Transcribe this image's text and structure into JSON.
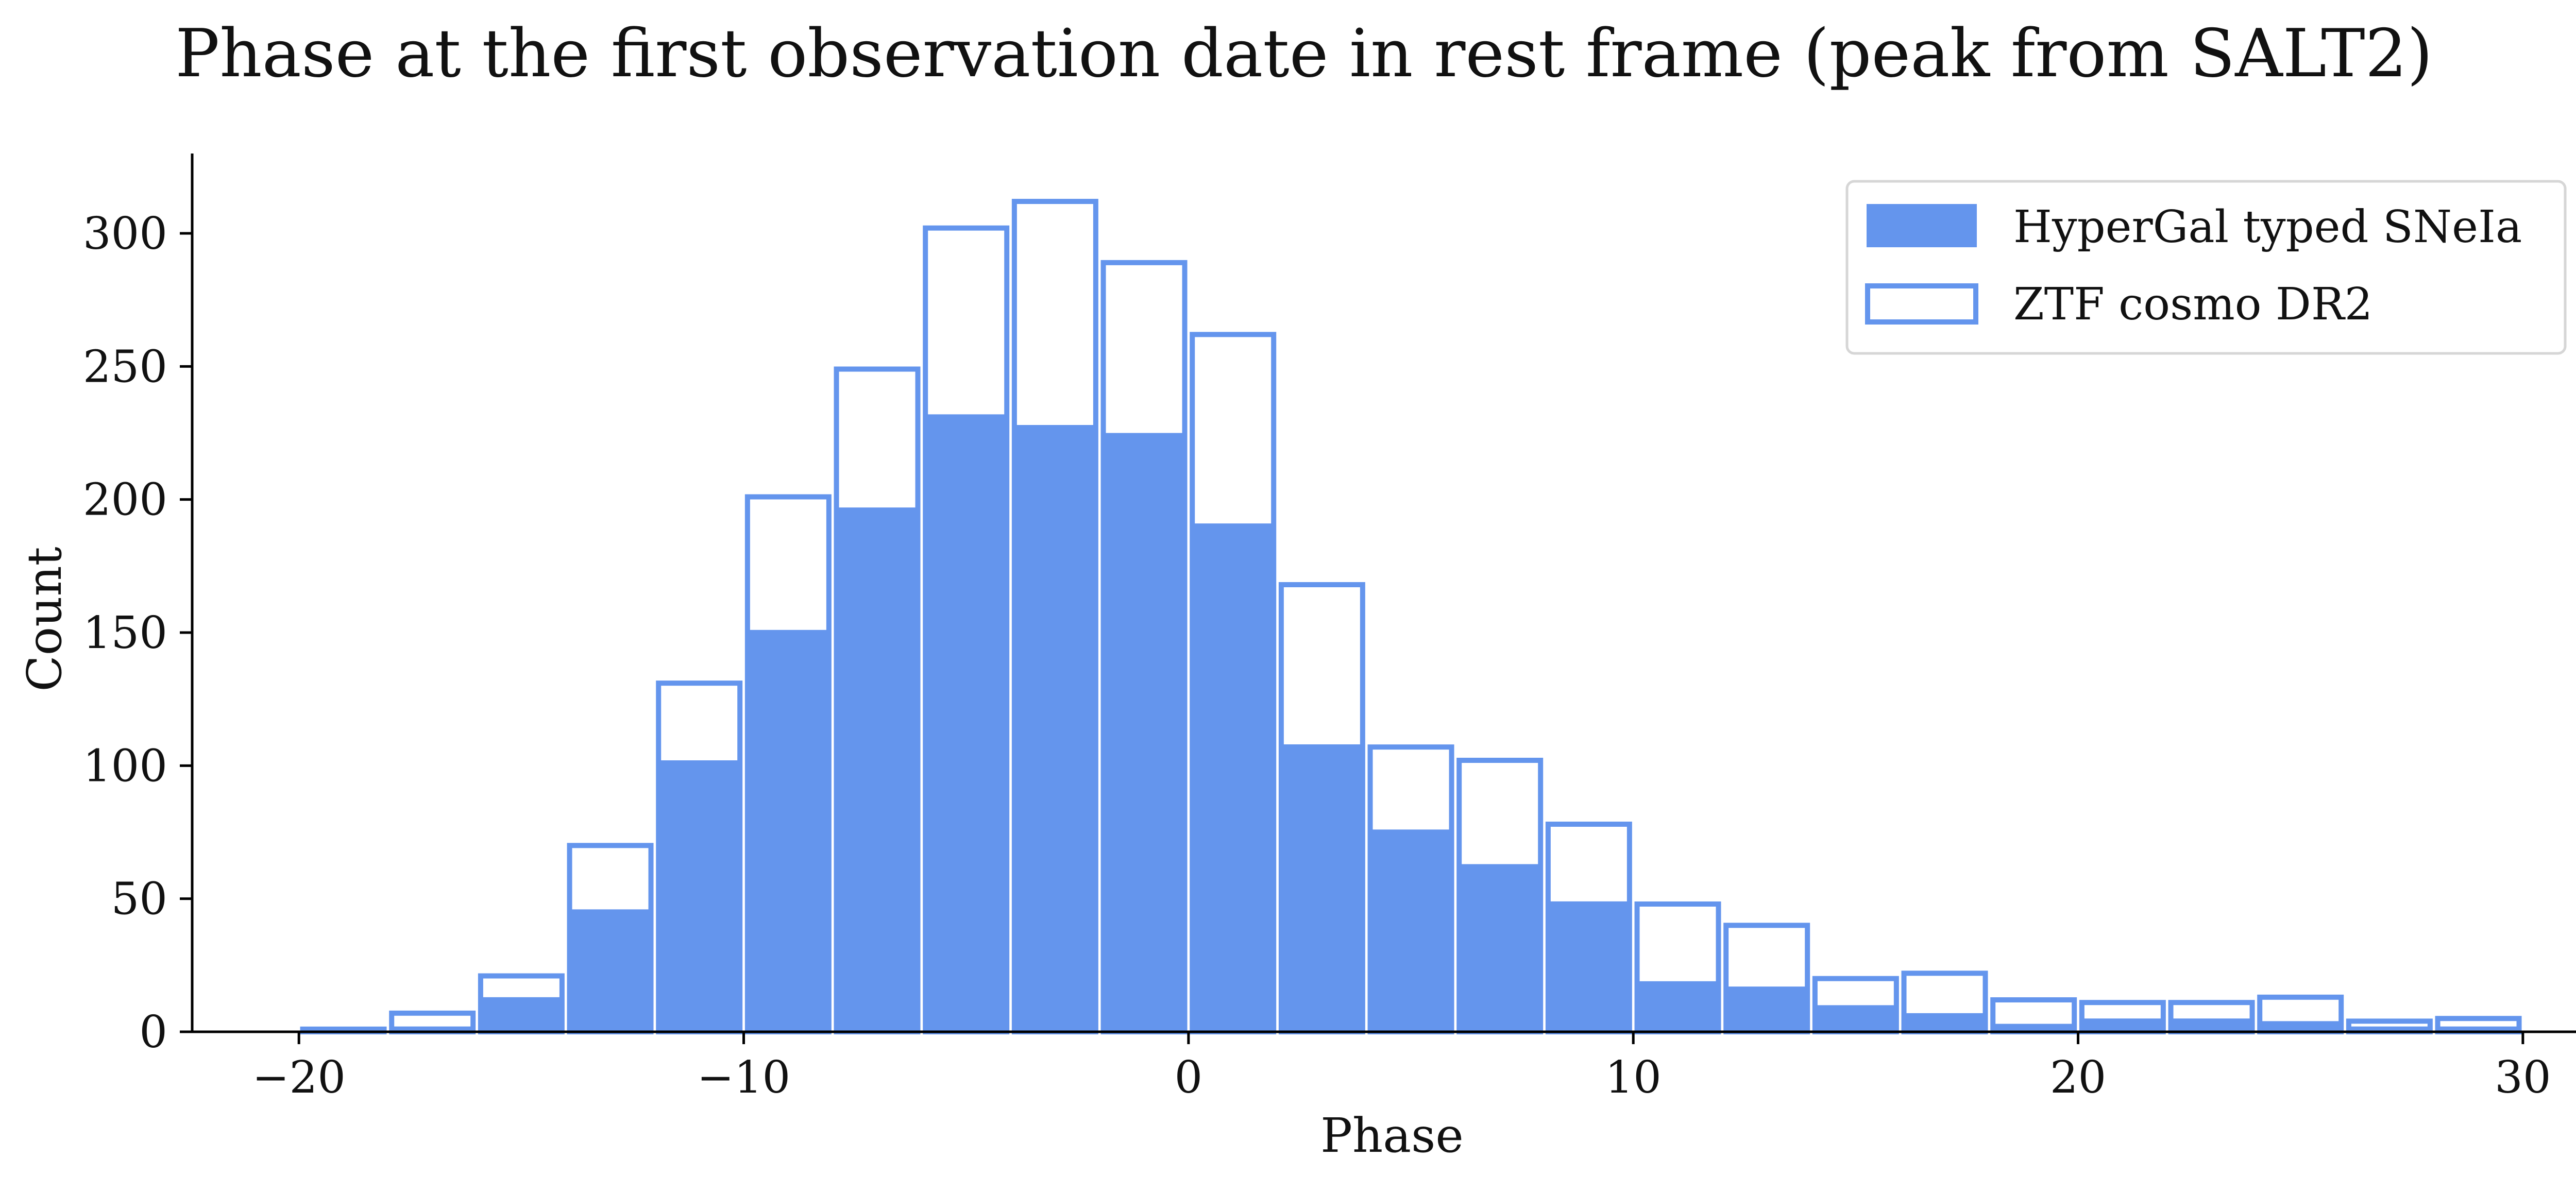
{
  "chart_data": {
    "type": "bar",
    "title": "Phase at the first observation date in rest frame (peak from SALT2)",
    "xlabel": "Phase",
    "ylabel": "Count",
    "xlim": [
      -22.4,
      31.6
    ],
    "ylim": [
      0,
      330
    ],
    "xticks": [
      -20,
      -10,
      0,
      10,
      20,
      30
    ],
    "xtick_labels": [
      "−20",
      "−10",
      "0",
      "10",
      "20",
      "30"
    ],
    "yticks": [
      0,
      50,
      100,
      150,
      200,
      250,
      300
    ],
    "ytick_labels": [
      "0",
      "50",
      "100",
      "150",
      "200",
      "250",
      "300"
    ],
    "bin_width": 2,
    "x": [
      -19,
      -17,
      -15,
      -13,
      -11,
      -9,
      -7,
      -5,
      -3,
      -1,
      1,
      3,
      5,
      7,
      9,
      11,
      13,
      15,
      17,
      19,
      21,
      23,
      25,
      27,
      29
    ],
    "series": [
      {
        "name": "HyperGal typed SNeIa",
        "style": "filled",
        "color": "#6495ED",
        "values": [
          0,
          2,
          13,
          46,
          102,
          151,
          197,
          232,
          228,
          225,
          191,
          108,
          76,
          63,
          49,
          19,
          17,
          10,
          7,
          3,
          5,
          5,
          4,
          2,
          2
        ]
      },
      {
        "name": "ZTF cosmo DR2",
        "style": "outline",
        "color": "#6495ED",
        "values": [
          1,
          7,
          21,
          70,
          131,
          201,
          249,
          302,
          312,
          289,
          262,
          168,
          107,
          102,
          78,
          48,
          40,
          20,
          22,
          12,
          11,
          11,
          13,
          4,
          5
        ]
      }
    ],
    "legend_position": "top-right",
    "grid": false
  }
}
